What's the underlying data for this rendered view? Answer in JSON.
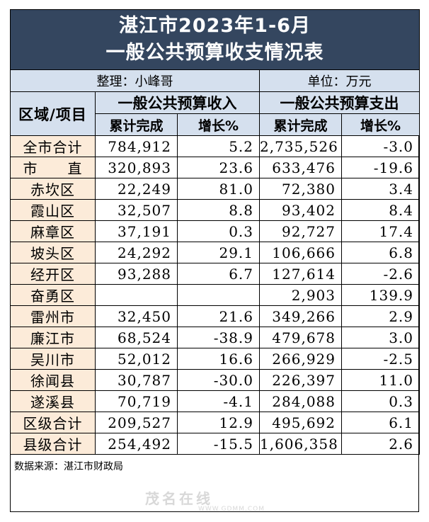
{
  "title": {
    "line1": "湛江市2023年1-6月",
    "line2": "一般公共预算收支情况表"
  },
  "meta": {
    "compiled_by": "整理：小峰哥",
    "unit": "单位：万元"
  },
  "headers": {
    "region": "区域/项目",
    "revenue_group": "一般公共预算收入",
    "expense_group": "一般公共预算支出",
    "revenue_cumulative": "累计完成",
    "revenue_growth": "增长%",
    "expense_cumulative": "累计完成",
    "expense_growth": "增长%"
  },
  "rows": [
    {
      "name": "全市合计",
      "rev": "784,912",
      "rev_g": "5.2",
      "exp": "2,735,526",
      "exp_g": "-3.0"
    },
    {
      "name": "市　　直",
      "rev": "320,893",
      "rev_g": "23.6",
      "exp": "633,476",
      "exp_g": "-19.6"
    },
    {
      "name": "赤坎区",
      "rev": "22,249",
      "rev_g": "81.0",
      "exp": "72,380",
      "exp_g": "3.4"
    },
    {
      "name": "霞山区",
      "rev": "32,507",
      "rev_g": "8.8",
      "exp": "93,402",
      "exp_g": "8.4"
    },
    {
      "name": "麻章区",
      "rev": "37,191",
      "rev_g": "0.3",
      "exp": "92,727",
      "exp_g": "17.4"
    },
    {
      "name": "坡头区",
      "rev": "24,292",
      "rev_g": "29.1",
      "exp": "106,666",
      "exp_g": "6.8"
    },
    {
      "name": "经开区",
      "rev": "93,288",
      "rev_g": "6.7",
      "exp": "127,614",
      "exp_g": "-2.6"
    },
    {
      "name": "奋勇区",
      "rev": "",
      "rev_g": "",
      "exp": "2,903",
      "exp_g": "139.9"
    },
    {
      "name": "雷州市",
      "rev": "32,450",
      "rev_g": "21.6",
      "exp": "349,266",
      "exp_g": "2.9"
    },
    {
      "name": "廉江市",
      "rev": "68,524",
      "rev_g": "-38.9",
      "exp": "479,678",
      "exp_g": "3.0"
    },
    {
      "name": "吴川市",
      "rev": "52,012",
      "rev_g": "16.6",
      "exp": "266,929",
      "exp_g": "-2.5"
    },
    {
      "name": "徐闻县",
      "rev": "30,787",
      "rev_g": "-30.0",
      "exp": "226,397",
      "exp_g": "11.0"
    },
    {
      "name": "遂溪县",
      "rev": "70,719",
      "rev_g": "-4.1",
      "exp": "284,088",
      "exp_g": "0.3"
    },
    {
      "name": "区级合计",
      "rev": "209,527",
      "rev_g": "12.9",
      "exp": "495,692",
      "exp_g": "6.1"
    },
    {
      "name": "县级合计",
      "rev": "254,492",
      "rev_g": "-15.5",
      "exp": "1,606,358",
      "exp_g": "2.6"
    }
  ],
  "footer": {
    "source": "数据来源：湛江市财政局"
  },
  "watermark": {
    "name": "茂名在线",
    "url": "WWW.GDMM.COM"
  },
  "colors": {
    "title_bg": "#34465f",
    "header_bg": "#d5e0ee",
    "name_bg": "#fcebd9"
  }
}
